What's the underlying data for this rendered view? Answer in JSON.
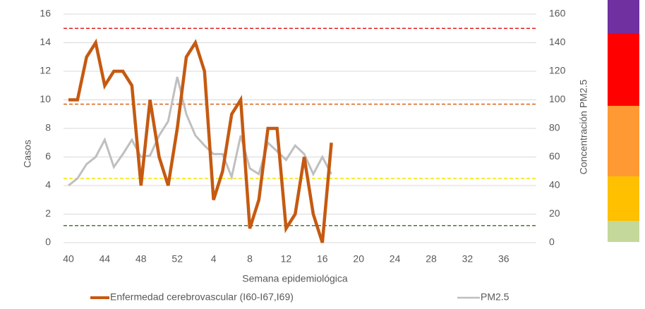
{
  "chart_data": {
    "type": "line",
    "x_label": "Semana epidemiológica",
    "y_label": "Casos",
    "y2_label": "Concentración PM2.5",
    "categories": [
      40,
      null,
      null,
      null,
      44,
      null,
      null,
      null,
      48,
      null,
      null,
      null,
      52,
      null,
      null,
      null,
      4,
      null,
      null,
      null,
      8,
      null,
      null,
      null,
      12,
      null,
      null,
      null,
      16,
      null,
      null,
      null,
      20,
      null,
      null,
      null,
      24,
      null,
      null,
      null,
      28,
      null,
      null,
      null,
      32,
      null,
      null,
      null,
      36,
      null,
      null,
      null
    ],
    "ylim": [
      0,
      16
    ],
    "yticks": [
      0,
      2,
      4,
      6,
      8,
      10,
      12,
      14,
      16
    ],
    "y2lim": [
      0,
      160
    ],
    "y2ticks": [
      0,
      20,
      40,
      60,
      80,
      100,
      120,
      140,
      160
    ],
    "grid": true,
    "series": [
      {
        "name": "Enfermedad cerebrovascular (I60-I67,I69)",
        "color": "#c55a11",
        "values": [
          10,
          10,
          13,
          14,
          11,
          12,
          12,
          11,
          4,
          10,
          6,
          4,
          8,
          13,
          14,
          12,
          3,
          5,
          9,
          10,
          1,
          3,
          8,
          8,
          1,
          2,
          6,
          2,
          0,
          7,
          null,
          null,
          null,
          null,
          null,
          null,
          null,
          null,
          null,
          null,
          null,
          null,
          null,
          null,
          null,
          null,
          null,
          null,
          null,
          null,
          null,
          null
        ]
      },
      {
        "name": "PM2.5",
        "color": "#bfbfbf",
        "axis": "y2",
        "values": [
          40,
          45,
          55,
          60,
          72,
          53,
          62,
          72,
          60,
          61,
          75,
          85,
          116,
          90,
          75,
          68,
          62,
          62,
          46,
          75,
          52,
          48,
          70,
          64,
          58,
          68,
          62,
          48,
          60,
          48,
          null,
          null,
          null,
          null,
          null,
          null,
          null,
          null,
          null,
          null,
          null,
          null,
          null,
          null,
          null,
          null,
          null,
          null,
          null,
          null,
          null,
          null
        ]
      }
    ],
    "reference_lines": [
      {
        "value": 150,
        "color": "#e02020"
      },
      {
        "value": 97,
        "color": "#d8641a"
      },
      {
        "value": 45,
        "color": "#f2e600"
      },
      {
        "value": 12,
        "color": "#4a7a2a"
      }
    ]
  }
}
